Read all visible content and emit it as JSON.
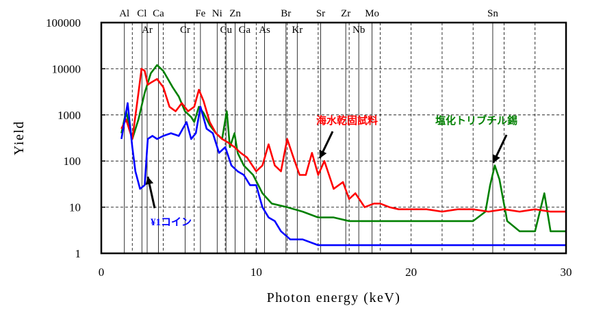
{
  "chart_data": {
    "type": "line",
    "xlabel": "Photon energy (keV)",
    "ylabel": "Yield",
    "x_scale": "linear",
    "y_scale": "log",
    "xlim": [
      0,
      30
    ],
    "ylim": [
      1,
      100000
    ],
    "x_ticks": [
      0,
      10,
      20,
      30
    ],
    "y_ticks": [
      1,
      10,
      100,
      1000,
      10000,
      100000
    ],
    "y_tick_labels": [
      "1",
      "10",
      "100",
      "1000",
      "10000",
      "100000"
    ],
    "grid": {
      "horizontal": "dashed at decades",
      "vertical": "dashed every 2 keV"
    },
    "legend": "none",
    "element_lines": [
      {
        "label": "Al",
        "x": 1.49,
        "row": "top"
      },
      {
        "label": "Cl",
        "x": 2.62,
        "row": "top"
      },
      {
        "label": "Ar",
        "x": 2.96,
        "row": "bottom"
      },
      {
        "label": "Ca",
        "x": 3.69,
        "row": "top"
      },
      {
        "label": "Cr",
        "x": 5.41,
        "row": "bottom"
      },
      {
        "label": "Fe",
        "x": 6.4,
        "row": "top"
      },
      {
        "label": "Ni",
        "x": 7.48,
        "row": "top"
      },
      {
        "label": "Cu",
        "x": 8.05,
        "row": "bottom"
      },
      {
        "label": "Zn",
        "x": 8.64,
        "row": "top"
      },
      {
        "label": "Ga",
        "x": 9.25,
        "row": "bottom"
      },
      {
        "label": "As",
        "x": 10.54,
        "row": "bottom"
      },
      {
        "label": "Br",
        "x": 11.92,
        "row": "top"
      },
      {
        "label": "Kr",
        "x": 12.65,
        "row": "bottom"
      },
      {
        "label": "Sr",
        "x": 14.16,
        "row": "top"
      },
      {
        "label": "Zr",
        "x": 15.78,
        "row": "top"
      },
      {
        "label": "Nb",
        "x": 16.62,
        "row": "bottom"
      },
      {
        "label": "Mo",
        "x": 17.48,
        "row": "top"
      },
      {
        "label": "Sn",
        "x": 25.27,
        "row": "top"
      }
    ],
    "annotations": [
      {
        "text": "海水乾固試料",
        "color": "#ff0000",
        "arrow_to": [
          14.1,
          100
        ]
      },
      {
        "text": "塩化トリブチル錫",
        "color": "#008000",
        "arrow_to": [
          25.3,
          80
        ]
      },
      {
        "text": "¥1コイン",
        "color": "#0000ff",
        "arrow_to": [
          3.0,
          40
        ]
      }
    ],
    "series": [
      {
        "name": "海水乾固試料",
        "color": "#ff0000",
        "x": [
          1.3,
          1.6,
          2.0,
          2.4,
          2.6,
          2.8,
          3.0,
          3.2,
          3.6,
          4.0,
          4.4,
          4.8,
          5.2,
          5.6,
          6.0,
          6.3,
          6.6,
          7.0,
          7.4,
          7.8,
          8.2,
          8.6,
          9.0,
          9.4,
          10.0,
          10.4,
          10.8,
          11.2,
          11.6,
          12.0,
          12.4,
          12.8,
          13.2,
          13.6,
          14.0,
          14.4,
          15.0,
          15.6,
          16.0,
          16.4,
          17.0,
          17.6,
          18.0,
          18.6,
          19.2,
          20.0,
          21.0,
          22.0,
          23.0,
          24.0,
          25.0,
          26.0,
          27.0,
          28.0,
          29.0,
          30.0
        ],
        "y": [
          500,
          800,
          300,
          3000,
          10000,
          9000,
          4500,
          5000,
          6000,
          4000,
          1500,
          1200,
          1800,
          1200,
          1500,
          3500,
          2000,
          700,
          400,
          300,
          250,
          200,
          150,
          120,
          60,
          80,
          230,
          80,
          60,
          300,
          120,
          50,
          50,
          150,
          50,
          100,
          25,
          35,
          15,
          20,
          10,
          12,
          12,
          10,
          9,
          9,
          9,
          8,
          9,
          9,
          8,
          9,
          8,
          9,
          8,
          8
        ]
      },
      {
        "name": "塩化トリブチル錫",
        "color": "#008000",
        "x": [
          1.3,
          1.6,
          2.0,
          2.4,
          2.8,
          3.2,
          3.6,
          4.0,
          4.6,
          5.0,
          5.4,
          5.8,
          6.0,
          6.3,
          6.6,
          7.0,
          7.4,
          7.8,
          8.1,
          8.3,
          8.6,
          8.8,
          9.2,
          9.8,
          10.4,
          11.0,
          12.0,
          13.0,
          14.0,
          15.0,
          16.0,
          17.0,
          18.0,
          19.0,
          20.0,
          21.0,
          22.0,
          23.0,
          24.0,
          24.8,
          25.1,
          25.4,
          25.7,
          26.2,
          27.0,
          28.0,
          28.6,
          29.0,
          29.4,
          30.0
        ],
        "y": [
          400,
          1200,
          300,
          800,
          3000,
          8000,
          12000,
          9000,
          4000,
          2500,
          1200,
          900,
          700,
          1500,
          1100,
          600,
          400,
          300,
          1200,
          200,
          400,
          150,
          80,
          50,
          20,
          12,
          10,
          8,
          6,
          6,
          5,
          5,
          5,
          5,
          5,
          5,
          5,
          5,
          5,
          8,
          30,
          80,
          40,
          5,
          3,
          3,
          20,
          3,
          3,
          3
        ]
      },
      {
        "name": "¥1コイン",
        "color": "#0000ff",
        "x": [
          1.3,
          1.7,
          2.0,
          2.2,
          2.5,
          2.8,
          3.0,
          3.3,
          3.6,
          4.0,
          4.5,
          5.0,
          5.5,
          5.8,
          6.1,
          6.4,
          6.8,
          7.2,
          7.6,
          8.0,
          8.4,
          8.8,
          9.2,
          9.6,
          10.0,
          10.4,
          10.8,
          11.2,
          11.6,
          12.2,
          13.0,
          14.0,
          15.0,
          16.0,
          17.0,
          18.0,
          19.0,
          20.0,
          22.0,
          24.0,
          26.0,
          28.0,
          30.0
        ],
        "y": [
          300,
          1800,
          200,
          60,
          25,
          30,
          300,
          350,
          300,
          350,
          400,
          350,
          700,
          300,
          400,
          1500,
          500,
          400,
          150,
          200,
          80,
          60,
          50,
          30,
          30,
          10,
          6,
          5,
          3,
          2,
          2,
          1.5,
          1.5,
          1.5,
          1.5,
          1.5,
          1.5,
          1.5,
          1.5,
          1.5,
          1.5,
          1.5,
          1.5
        ]
      }
    ]
  }
}
